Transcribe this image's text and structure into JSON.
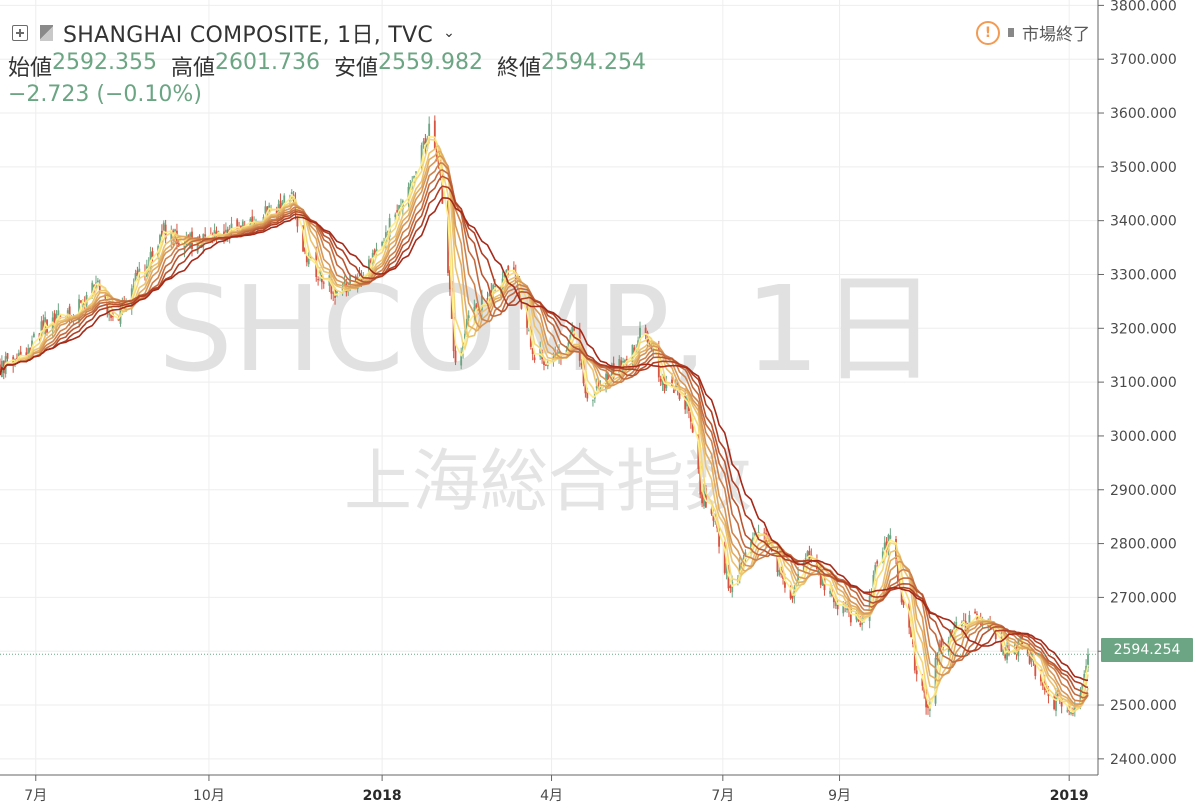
{
  "header": {
    "symbol_title": "SHANGHAI COMPOSITE, 1日, TVC",
    "open_label": "始値",
    "open_value": "2592.355",
    "high_label": "高値",
    "high_value": "2601.736",
    "low_label": "安値",
    "low_value": "2559.982",
    "close_label": "終値",
    "close_value": "2594.254",
    "change_text": "−2.723 (−0.10%)",
    "market_status": "市場終了"
  },
  "watermark": {
    "main": "SHCOMP, 1日",
    "sub": "上海総合指数"
  },
  "price_tag": "2594.254",
  "colors": {
    "up": "#6ba583",
    "down": "#d75442",
    "grid": "#eeeeee",
    "ribbon_fast": "#ffee88",
    "ribbon_slow": "#a52a1a"
  },
  "chart_data": {
    "type": "candlestick",
    "title": "SHANGHAI COMPOSITE, 1日, TVC",
    "xlabel": "",
    "ylabel": "",
    "grid": true,
    "y_axis_position": "right",
    "ylim": [
      2370,
      3810
    ],
    "y_ticks": [
      "3800.000",
      "3700.000",
      "3600.000",
      "3500.000",
      "3400.000",
      "3300.000",
      "3200.000",
      "3100.000",
      "3000.000",
      "2900.000",
      "2800.000",
      "2700.000",
      "2600.000",
      "2500.000",
      "2400.000"
    ],
    "x_ticks": [
      {
        "label": "7月",
        "date": "2017-07-01",
        "bold": false
      },
      {
        "label": "10月",
        "date": "2017-10-01",
        "bold": false
      },
      {
        "label": "2018",
        "date": "2018-01-01",
        "bold": true
      },
      {
        "label": "4月",
        "date": "2018-04-01",
        "bold": false
      },
      {
        "label": "7月",
        "date": "2018-07-01",
        "bold": false
      },
      {
        "label": "9月",
        "date": "2018-09-01",
        "bold": false
      },
      {
        "label": "2019",
        "date": "2019-01-01",
        "bold": true
      }
    ],
    "date_range": [
      "2017-06-12",
      "2019-01-11"
    ],
    "last_price": 2594.254,
    "close_path": [
      [
        "2017-06-12",
        3130
      ],
      [
        "2017-06-26",
        3155
      ],
      [
        "2017-07-05",
        3205
      ],
      [
        "2017-07-20",
        3230
      ],
      [
        "2017-08-02",
        3280
      ],
      [
        "2017-08-11",
        3210
      ],
      [
        "2017-08-25",
        3300
      ],
      [
        "2017-09-07",
        3380
      ],
      [
        "2017-09-20",
        3360
      ],
      [
        "2017-10-09",
        3370
      ],
      [
        "2017-10-25",
        3400
      ],
      [
        "2017-11-14",
        3440
      ],
      [
        "2017-11-22",
        3330
      ],
      [
        "2017-12-07",
        3270
      ],
      [
        "2017-12-20",
        3300
      ],
      [
        "2018-01-05",
        3390
      ],
      [
        "2018-01-18",
        3480
      ],
      [
        "2018-01-26",
        3570
      ],
      [
        "2018-02-01",
        3470
      ],
      [
        "2018-02-06",
        3260
      ],
      [
        "2018-02-09",
        3120
      ],
      [
        "2018-02-14",
        3200
      ],
      [
        "2018-02-28",
        3270
      ],
      [
        "2018-03-12",
        3310
      ],
      [
        "2018-03-23",
        3150
      ],
      [
        "2018-04-04",
        3140
      ],
      [
        "2018-04-12",
        3190
      ],
      [
        "2018-04-20",
        3070
      ],
      [
        "2018-05-07",
        3130
      ],
      [
        "2018-05-21",
        3200
      ],
      [
        "2018-05-30",
        3100
      ],
      [
        "2018-06-12",
        3060
      ],
      [
        "2018-06-19",
        2900
      ],
      [
        "2018-06-26",
        2840
      ],
      [
        "2018-07-05",
        2720
      ],
      [
        "2018-07-20",
        2830
      ],
      [
        "2018-08-06",
        2700
      ],
      [
        "2018-08-14",
        2780
      ],
      [
        "2018-08-28",
        2700
      ],
      [
        "2018-09-12",
        2650
      ],
      [
        "2018-09-21",
        2760
      ],
      [
        "2018-09-28",
        2810
      ],
      [
        "2018-10-11",
        2580
      ],
      [
        "2018-10-18",
        2490
      ],
      [
        "2018-10-23",
        2600
      ],
      [
        "2018-11-05",
        2650
      ],
      [
        "2018-11-19",
        2660
      ],
      [
        "2018-11-30",
        2590
      ],
      [
        "2018-12-07",
        2620
      ],
      [
        "2018-12-21",
        2520
      ],
      [
        "2019-01-03",
        2470
      ],
      [
        "2019-01-11",
        2594
      ]
    ],
    "moving_averages": [
      {
        "name": "MA",
        "period": 3
      },
      {
        "name": "MA",
        "period": 5
      },
      {
        "name": "MA",
        "period": 8
      },
      {
        "name": "MA",
        "period": 10
      },
      {
        "name": "MA",
        "period": 12
      },
      {
        "name": "MA",
        "period": 15
      },
      {
        "name": "MA",
        "period": 18
      },
      {
        "name": "MA",
        "period": 21
      },
      {
        "name": "MA",
        "period": 25
      },
      {
        "name": "MA",
        "period": 30
      }
    ]
  }
}
